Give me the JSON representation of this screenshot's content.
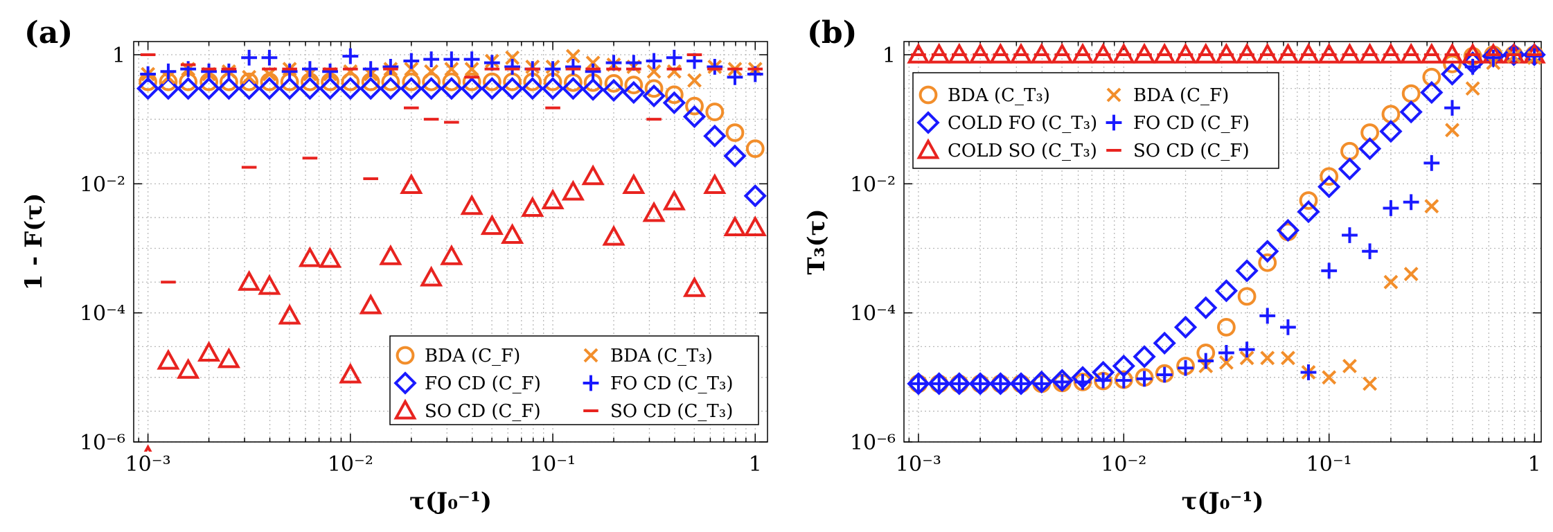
{
  "chart_data": [
    {
      "type": "scatter",
      "panel": "(a)",
      "xlabel": "τ(J₀⁻¹)",
      "ylabel": "1 - F(τ)",
      "xscale": "log",
      "yscale": "log",
      "xlim": [
        0.00085,
        1.15
      ],
      "ylim": [
        1e-06,
        1.6
      ],
      "x_ticks": [
        {
          "value": 0.001,
          "label": "10⁻³"
        },
        {
          "value": 0.01,
          "label": "10⁻²"
        },
        {
          "value": 0.1,
          "label": "10⁻¹"
        },
        {
          "value": 1,
          "label": "1"
        }
      ],
      "y_ticks": [
        {
          "value": 1e-06,
          "label": "10⁻⁶"
        },
        {
          "value": 0.0001,
          "label": "10⁻⁴"
        },
        {
          "value": 0.01,
          "label": "10⁻²"
        },
        {
          "value": 1,
          "label": "1"
        }
      ],
      "grid": true,
      "legend_position": "bottom-right",
      "legend_columns": 2,
      "x": [
        0.001,
        0.00126,
        0.00158,
        0.002,
        0.00251,
        0.00316,
        0.00398,
        0.00501,
        0.00631,
        0.00794,
        0.01,
        0.0126,
        0.0158,
        0.02,
        0.0251,
        0.0316,
        0.0398,
        0.0501,
        0.0631,
        0.0794,
        0.1,
        0.126,
        0.158,
        0.2,
        0.251,
        0.316,
        0.398,
        0.501,
        0.631,
        0.794,
        1.0
      ],
      "series": [
        {
          "name": "BDA (C_F)",
          "marker": "circle",
          "color": "#f28e2b",
          "values": [
            0.38,
            0.38,
            0.38,
            0.38,
            0.38,
            0.38,
            0.38,
            0.38,
            0.38,
            0.38,
            0.38,
            0.38,
            0.38,
            0.38,
            0.38,
            0.38,
            0.38,
            0.38,
            0.38,
            0.38,
            0.38,
            0.37,
            0.37,
            0.36,
            0.34,
            0.3,
            0.24,
            0.16,
            0.13,
            0.062,
            0.035
          ]
        },
        {
          "name": "FO CD (C_F)",
          "marker": "diamond",
          "color": "#1a1aff",
          "values": [
            0.3,
            0.3,
            0.3,
            0.3,
            0.3,
            0.3,
            0.3,
            0.3,
            0.3,
            0.3,
            0.3,
            0.3,
            0.3,
            0.3,
            0.3,
            0.3,
            0.3,
            0.3,
            0.3,
            0.3,
            0.3,
            0.3,
            0.29,
            0.28,
            0.26,
            0.23,
            0.18,
            0.11,
            0.055,
            0.027,
            0.0065
          ]
        },
        {
          "name": "SO CD (C_F)",
          "marker": "triangle",
          "color": "#e8231f",
          "values": [
            6e-07,
            1.8e-05,
            1.3e-05,
            2.4e-05,
            1.9e-05,
            0.0003,
            0.00026,
            9e-05,
            0.0007,
            0.00068,
            1.1e-05,
            0.00013,
            0.00075,
            0.0095,
            0.00035,
            0.00075,
            0.0045,
            0.0022,
            0.0016,
            0.0042,
            0.0055,
            0.0075,
            0.013,
            0.0015,
            0.0095,
            0.0035,
            0.0053,
            0.00024,
            0.0095,
            0.0021,
            0.0021
          ]
        },
        {
          "name": "BDA (C_T₃)",
          "marker": "x",
          "color": "#f28e2b",
          "values": [
            0.5,
            0.45,
            0.6,
            0.5,
            0.55,
            0.45,
            0.5,
            0.6,
            0.5,
            0.5,
            0.55,
            0.5,
            0.6,
            0.6,
            0.55,
            0.6,
            0.6,
            0.8,
            0.9,
            0.65,
            0.65,
            0.95,
            0.75,
            0.7,
            0.65,
            0.55,
            0.55,
            0.4,
            0.65,
            0.6,
            0.6
          ]
        },
        {
          "name": "FO CD (C_T₃)",
          "marker": "plus",
          "color": "#1a1aff",
          "values": [
            0.5,
            0.55,
            0.6,
            0.55,
            0.55,
            0.9,
            0.9,
            0.55,
            0.6,
            0.55,
            0.95,
            0.6,
            0.65,
            0.8,
            0.85,
            0.85,
            0.85,
            0.75,
            0.65,
            0.6,
            0.6,
            0.65,
            0.55,
            0.75,
            0.75,
            0.8,
            0.9,
            0.8,
            0.65,
            0.45,
            0.5
          ]
        },
        {
          "name": "SO CD (C_T₃)",
          "marker": "dash",
          "color": "#e8231f",
          "values": [
            1.0,
            0.0003,
            0.7,
            0.6,
            0.6,
            0.018,
            0.6,
            0.6,
            0.025,
            0.6,
            0.6,
            0.012,
            0.6,
            0.15,
            0.1,
            0.09,
            0.45,
            0.6,
            0.6,
            0.6,
            0.15,
            0.6,
            0.6,
            0.6,
            0.6,
            0.1,
            0.6,
            1.0,
            0.6,
            0.6,
            0.6
          ]
        }
      ]
    },
    {
      "type": "scatter",
      "panel": "(b)",
      "xlabel": "τ(J₀⁻¹)",
      "ylabel": "T₃(τ)",
      "xscale": "log",
      "yscale": "log",
      "xlim": [
        0.00085,
        1.08
      ],
      "ylim": [
        1e-06,
        1.6
      ],
      "x_ticks": [
        {
          "value": 0.001,
          "label": "10⁻³"
        },
        {
          "value": 0.01,
          "label": "10⁻²"
        },
        {
          "value": 0.1,
          "label": "10⁻¹"
        },
        {
          "value": 1,
          "label": "1"
        }
      ],
      "y_ticks": [
        {
          "value": 1e-06,
          "label": "10⁻⁶"
        },
        {
          "value": 0.0001,
          "label": "10⁻⁴"
        },
        {
          "value": 0.01,
          "label": "10⁻²"
        },
        {
          "value": 1,
          "label": "1"
        }
      ],
      "grid": true,
      "legend_position": "top-left",
      "legend_columns": 2,
      "x": [
        0.001,
        0.00126,
        0.00158,
        0.002,
        0.00251,
        0.00316,
        0.00398,
        0.00501,
        0.00631,
        0.00794,
        0.01,
        0.0126,
        0.0158,
        0.02,
        0.0251,
        0.0316,
        0.0398,
        0.0501,
        0.0631,
        0.0794,
        0.1,
        0.126,
        0.158,
        0.2,
        0.251,
        0.316,
        0.398,
        0.501,
        0.631,
        0.794,
        1.0
      ],
      "series": [
        {
          "name": "BDA (C_T₃)",
          "marker": "circle",
          "color": "#f28e2b",
          "values": [
            8e-06,
            8e-06,
            8e-06,
            8e-06,
            8e-06,
            8e-06,
            8e-06,
            8.2e-06,
            8.5e-06,
            8.8e-06,
            9.2e-06,
            1e-05,
            1.15e-05,
            1.5e-05,
            2.4e-05,
            6e-05,
            0.00018,
            0.0006,
            0.0018,
            0.0055,
            0.013,
            0.032,
            0.062,
            0.12,
            0.25,
            0.45,
            0.72,
            0.95,
            1.0,
            1.0,
            1.0
          ]
        },
        {
          "name": "COLD FO (C_T₃)",
          "marker": "diamond",
          "color": "#1a1aff",
          "values": [
            8e-06,
            8e-06,
            8e-06,
            8e-06,
            8e-06,
            8e-06,
            8.5e-06,
            9e-06,
            1e-05,
            1.2e-05,
            1.5e-05,
            2.1e-05,
            3.4e-05,
            6e-05,
            0.00012,
            0.00022,
            0.00045,
            0.0009,
            0.0019,
            0.0037,
            0.009,
            0.017,
            0.035,
            0.065,
            0.13,
            0.26,
            0.5,
            0.75,
            0.95,
            1.0,
            1.0
          ]
        },
        {
          "name": "COLD SO (C_T₃)",
          "marker": "triangle",
          "color": "#e8231f",
          "values": [
            1.0,
            1.0,
            1.0,
            1.0,
            1.0,
            1.0,
            1.0,
            1.0,
            1.0,
            1.0,
            1.0,
            1.0,
            1.0,
            1.0,
            1.0,
            1.0,
            1.0,
            1.0,
            1.0,
            1.0,
            1.0,
            1.0,
            1.0,
            1.0,
            1.0,
            1.0,
            1.0,
            1.0,
            1.0,
            1.0,
            1.0
          ]
        },
        {
          "name": "BDA (C_F)",
          "marker": "x",
          "color": "#f28e2b",
          "values": [
            null,
            null,
            null,
            null,
            null,
            null,
            null,
            null,
            null,
            null,
            null,
            null,
            null,
            null,
            1.5e-05,
            1.7e-05,
            2e-05,
            2e-05,
            2e-05,
            1.2e-05,
            1e-05,
            1.5e-05,
            8e-06,
            0.0003,
            0.0004,
            0.0045,
            0.068,
            0.3,
            0.75,
            0.95,
            0.9
          ]
        },
        {
          "name": "FO CD (C_F)",
          "marker": "plus",
          "color": "#1a1aff",
          "values": [
            8e-06,
            8e-06,
            8e-06,
            8e-06,
            8e-06,
            8e-06,
            8e-06,
            8.5e-06,
            8.5e-06,
            9e-06,
            9e-06,
            9.5e-06,
            1.1e-05,
            1.4e-05,
            1.8e-05,
            2.4e-05,
            2.7e-05,
            9e-05,
            6e-05,
            1.2e-05,
            0.00045,
            0.0016,
            0.0009,
            0.0042,
            0.0052,
            0.021,
            0.15,
            0.65,
            0.9,
            1.0,
            0.95
          ]
        },
        {
          "name": "SO CD (C_F)",
          "marker": "dash",
          "color": "#e8231f",
          "values": [
            1.0,
            1.0,
            1.0,
            1.0,
            1.0,
            1.0,
            1.0,
            1.0,
            1.0,
            1.0,
            1.0,
            1.0,
            1.0,
            1.0,
            1.0,
            1.0,
            1.0,
            1.0,
            1.0,
            1.0,
            1.0,
            1.0,
            1.0,
            1.0,
            1.0,
            1.0,
            1.0,
            1.0,
            1.0,
            1.0,
            1.0
          ]
        }
      ]
    }
  ]
}
